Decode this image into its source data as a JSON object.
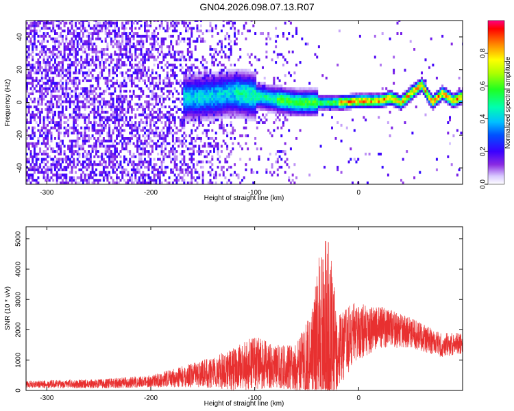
{
  "title": "GN04.2026.098.07.13.R07",
  "chart_data": [
    {
      "type": "heatmap",
      "xlabel": "Height of straight line (km)",
      "ylabel": "Frequency (Hz)",
      "xlim": [
        -320,
        100
      ],
      "ylim": [
        -50,
        50
      ],
      "x_ticks": [
        -300,
        -200,
        -100,
        0
      ],
      "x_tick_labels": [
        "-300",
        "-200",
        "-100",
        "0"
      ],
      "y_ticks": [
        -40,
        -20,
        0,
        20,
        40
      ],
      "y_tick_labels": [
        "-40",
        "-20",
        "0",
        "20",
        "40"
      ],
      "colorbar": {
        "label": "Normalized spectral amplitude",
        "range": [
          0,
          1
        ],
        "ticks": [
          0.0,
          0.2,
          0.4,
          0.6,
          0.8
        ],
        "tick_labels": [
          "0.0",
          "0.2",
          "0.4",
          "0.6",
          "0.8"
        ],
        "colormap": "rainbow"
      },
      "ridge": [
        {
          "x": -160,
          "y": 2
        },
        {
          "x": -140,
          "y": 3
        },
        {
          "x": -120,
          "y": 5
        },
        {
          "x": -100,
          "y": 3
        },
        {
          "x": -80,
          "y": 1
        },
        {
          "x": -60,
          "y": -1
        },
        {
          "x": -40,
          "y": -1
        },
        {
          "x": -20,
          "y": -1
        },
        {
          "x": 0,
          "y": 0
        },
        {
          "x": 20,
          "y": 0
        },
        {
          "x": 30,
          "y": 2
        },
        {
          "x": 40,
          "y": -1
        },
        {
          "x": 50,
          "y": 5
        },
        {
          "x": 60,
          "y": 10
        },
        {
          "x": 70,
          "y": -1
        },
        {
          "x": 80,
          "y": 5
        },
        {
          "x": 90,
          "y": 0
        },
        {
          "x": 100,
          "y": 3
        }
      ],
      "grid": false
    },
    {
      "type": "line",
      "xlabel": "Height of straight line (km)",
      "ylabel": "SNR (10 * v/v)",
      "xlim": [
        -320,
        100
      ],
      "ylim": [
        0,
        5400
      ],
      "x_ticks": [
        -300,
        -200,
        -100,
        0
      ],
      "x_tick_labels": [
        "-300",
        "-200",
        "-100",
        "0"
      ],
      "y_ticks": [
        0,
        1000,
        2000,
        3000,
        4000,
        5000
      ],
      "y_tick_labels": [
        "0",
        "1000",
        "2000",
        "3000",
        "4000",
        "5000"
      ],
      "line_color": "#e83030",
      "envelope": [
        {
          "x": -320,
          "mean": 200,
          "spread": 120
        },
        {
          "x": -250,
          "mean": 220,
          "spread": 150
        },
        {
          "x": -200,
          "mean": 300,
          "spread": 200
        },
        {
          "x": -150,
          "mean": 550,
          "spread": 450
        },
        {
          "x": -120,
          "mean": 700,
          "spread": 700
        },
        {
          "x": -100,
          "mean": 900,
          "spread": 900
        },
        {
          "x": -80,
          "mean": 800,
          "spread": 700
        },
        {
          "x": -60,
          "mean": 700,
          "spread": 800
        },
        {
          "x": -45,
          "mean": 1200,
          "spread": 1600
        },
        {
          "x": -35,
          "mean": 1800,
          "spread": 3000
        },
        {
          "x": -28,
          "mean": 1600,
          "spread": 3400
        },
        {
          "x": -20,
          "mean": 1200,
          "spread": 1300
        },
        {
          "x": -5,
          "mean": 1900,
          "spread": 1000
        },
        {
          "x": 20,
          "mean": 2100,
          "spread": 700
        },
        {
          "x": 50,
          "mean": 1900,
          "spread": 500
        },
        {
          "x": 80,
          "mean": 1500,
          "spread": 400
        },
        {
          "x": 100,
          "mean": 1550,
          "spread": 350
        }
      ],
      "grid": false
    }
  ]
}
